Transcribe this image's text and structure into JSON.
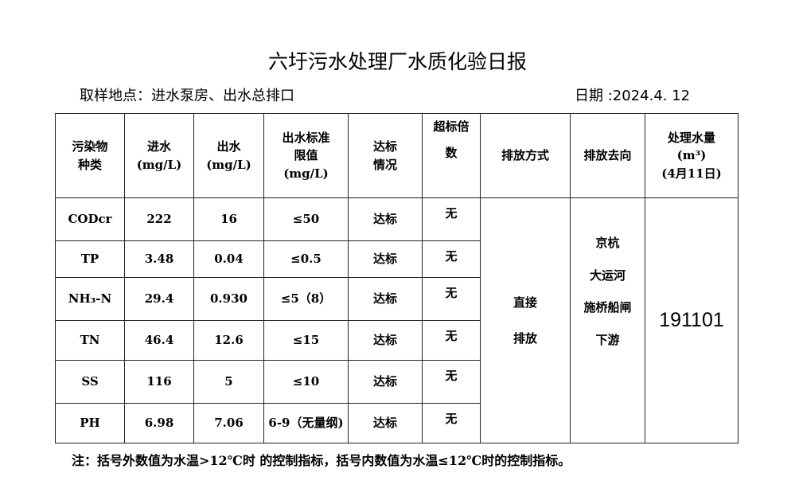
{
  "title": "六圩污水处理厂水质化验日报",
  "location": "取样地点：进水泵房、出水总排口",
  "date": "日期 :2024.4. 12",
  "headers": {
    "pollutant": [
      "污染物",
      "种类"
    ],
    "inflow": [
      "进水",
      "(mg/L)"
    ],
    "outflow": [
      "出水",
      "(mg/L)"
    ],
    "limit": [
      "出水标准",
      "限值",
      "(mg/L)"
    ],
    "status": [
      "达标",
      "情况"
    ],
    "exceed": [
      "超标倍",
      "数"
    ],
    "mode": "排放方式",
    "dest": "排放去向",
    "volume": [
      "处理水量",
      "(m³)",
      "(4月11日)"
    ]
  },
  "rows": [
    {
      "name": "CODcr",
      "in": "222",
      "out": "16",
      "limit": "≤50",
      "status": "达标",
      "exceed": "无"
    },
    {
      "name": "TP",
      "in": "3.48",
      "out": "0.04",
      "limit": "≤0.5",
      "status": "达标",
      "exceed": "无"
    },
    {
      "name": "NH₃-N",
      "in": "29.4",
      "out": "0.930",
      "limit": "≤5（8）",
      "status": "达标",
      "exceed": "无"
    },
    {
      "name": "TN",
      "in": "46.4",
      "out": "12.6",
      "limit": "≤15",
      "status": "达标",
      "exceed": "无"
    },
    {
      "name": "SS",
      "in": "116",
      "out": "5",
      "limit": "≤10",
      "status": "达标",
      "exceed": "无"
    },
    {
      "name": "PH",
      "in": "6.98",
      "out": "7.06",
      "limit": "6-9（无量纲)",
      "status": "达标",
      "exceed": "无"
    }
  ],
  "mode": [
    "直接",
    "排放"
  ],
  "dest": [
    "京杭",
    "大运河",
    "施桥船闸",
    "下游"
  ],
  "volume": "191101",
  "note": "注：括号外数值为水温>12℃时 的控制指标，括号内数值为水温≤12℃时的控制指标。"
}
